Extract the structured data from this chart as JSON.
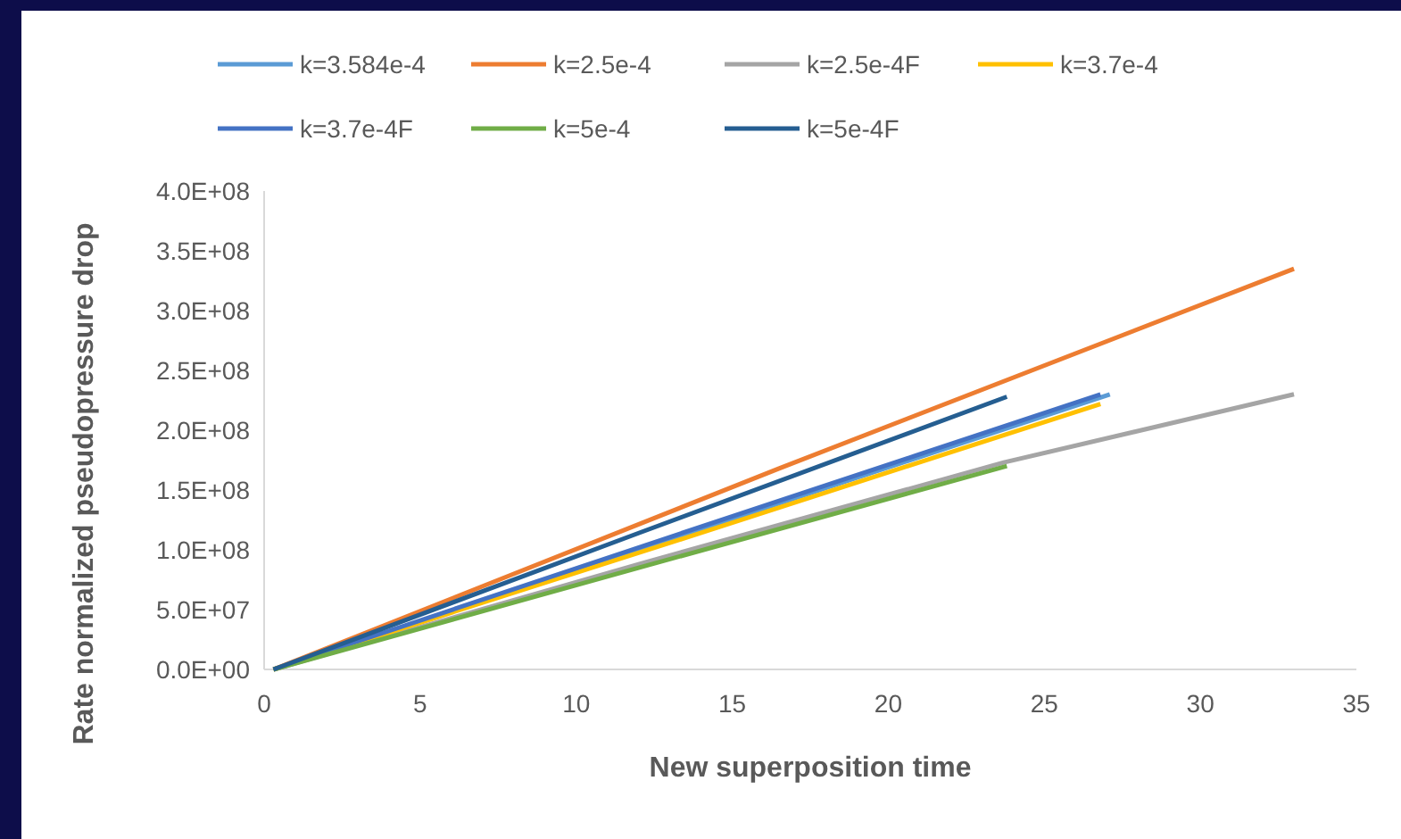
{
  "chart_data": {
    "type": "line",
    "xlabel": "New superposition time",
    "ylabel": "Rate normalized pseudopressure drop",
    "xlim": [
      0,
      35
    ],
    "xticks": [
      0,
      5,
      10,
      15,
      20,
      25,
      30,
      35
    ],
    "ylim": [
      0,
      400000000
    ],
    "yticks": [
      {
        "value": 0,
        "label": "0.0E+00"
      },
      {
        "value": 50000000,
        "label": "5.0E+07"
      },
      {
        "value": 100000000,
        "label": "1.0E+08"
      },
      {
        "value": 150000000,
        "label": "1.5E+08"
      },
      {
        "value": 200000000,
        "label": "2.0E+08"
      },
      {
        "value": 250000000,
        "label": "2.5E+08"
      },
      {
        "value": 300000000,
        "label": "3.0E+08"
      },
      {
        "value": 350000000,
        "label": "3.5E+08"
      },
      {
        "value": 400000000,
        "label": "4.0E+08"
      }
    ],
    "grid": false,
    "legend": "top",
    "marker": "none",
    "line_style": "solid",
    "series": [
      {
        "name": "k=3.584e-4",
        "color": "#5b9bd5",
        "x": [
          0.3,
          13.5,
          27.1
        ],
        "values": [
          0,
          113000000,
          230000000
        ]
      },
      {
        "name": "k=2.5e-4",
        "color": "#ed7d31",
        "x": [
          0.3,
          16.5,
          33
        ],
        "values": [
          0,
          168000000,
          335000000
        ]
      },
      {
        "name": "k=2.5e-4F",
        "color": "#a5a5a5",
        "x": [
          0.3,
          12,
          23.7,
          33
        ],
        "values": [
          0,
          88000000,
          173000000,
          230000000
        ]
      },
      {
        "name": "k=3.7e-4",
        "color": "#ffc000",
        "x": [
          0.3,
          13.5,
          26.8
        ],
        "values": [
          0,
          110000000,
          222000000
        ]
      },
      {
        "name": "k=3.7e-4F",
        "color": "#4472c4",
        "x": [
          0.3,
          13.5,
          26.8
        ],
        "values": [
          0,
          115000000,
          230000000
        ]
      },
      {
        "name": "k=5e-4",
        "color": "#70ad47",
        "x": [
          0.3,
          12,
          23.8
        ],
        "values": [
          0,
          85000000,
          170000000
        ]
      },
      {
        "name": "k=5e-4F",
        "color": "#255e91",
        "x": [
          0.3,
          12,
          23.8
        ],
        "values": [
          0,
          114000000,
          228000000
        ]
      }
    ]
  }
}
